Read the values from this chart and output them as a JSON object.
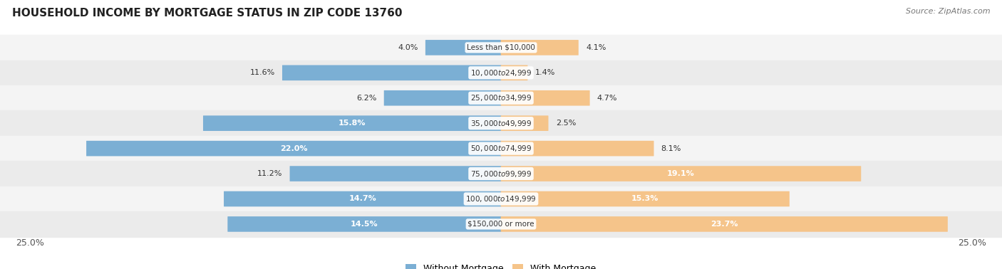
{
  "title": "HOUSEHOLD INCOME BY MORTGAGE STATUS IN ZIP CODE 13760",
  "source": "Source: ZipAtlas.com",
  "categories": [
    "Less than $10,000",
    "$10,000 to $24,999",
    "$25,000 to $34,999",
    "$35,000 to $49,999",
    "$50,000 to $74,999",
    "$75,000 to $99,999",
    "$100,000 to $149,999",
    "$150,000 or more"
  ],
  "without_mortgage": [
    4.0,
    11.6,
    6.2,
    15.8,
    22.0,
    11.2,
    14.7,
    14.5
  ],
  "with_mortgage": [
    4.1,
    1.4,
    4.7,
    2.5,
    8.1,
    19.1,
    15.3,
    23.7
  ],
  "color_without": "#7BAFD4",
  "color_with": "#F5C48A",
  "axis_limit": 25.0,
  "title_fontsize": 11,
  "source_fontsize": 8,
  "label_fontsize": 8,
  "category_fontsize": 7.5,
  "legend_fontsize": 9,
  "bar_height": 0.58,
  "row_colors": [
    "#F4F4F4",
    "#EBEBEB"
  ]
}
